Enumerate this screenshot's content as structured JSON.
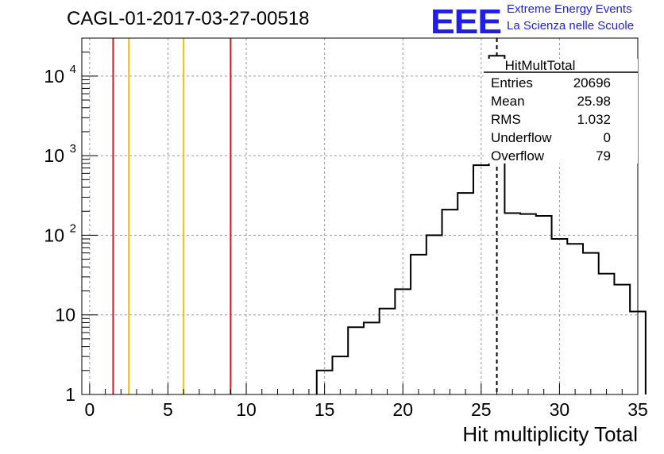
{
  "title": "CAGL-01-2017-03-27-00518",
  "logo": {
    "mark": "EEE",
    "line1": "Extreme Energy Events",
    "line2": "La Scienza nelle Scuole",
    "color": "#1f1fe6"
  },
  "chart_data": {
    "type": "histogram",
    "xlabel": "Hit multiplicity Total",
    "ylabel": "",
    "xlim": [
      -0.5,
      35
    ],
    "ylim": [
      1,
      30000
    ],
    "yscale": "log",
    "grid": true,
    "x_ticks": [
      0,
      5,
      10,
      15,
      20,
      25,
      30,
      35
    ],
    "y_ticks": [
      {
        "value": 1,
        "label": "1"
      },
      {
        "value": 10,
        "label": "10"
      },
      {
        "value": 100,
        "label": "10^2"
      },
      {
        "value": 1000,
        "label": "10^3"
      },
      {
        "value": 10000,
        "label": "10^4"
      }
    ],
    "bin_width": 1,
    "bins": [
      {
        "x_low": 14.5,
        "count": 2
      },
      {
        "x_low": 15.5,
        "count": 3
      },
      {
        "x_low": 16.5,
        "count": 7
      },
      {
        "x_low": 17.5,
        "count": 8
      },
      {
        "x_low": 18.5,
        "count": 12
      },
      {
        "x_low": 19.5,
        "count": 21
      },
      {
        "x_low": 20.5,
        "count": 57
      },
      {
        "x_low": 21.5,
        "count": 100
      },
      {
        "x_low": 22.5,
        "count": 210
      },
      {
        "x_low": 23.5,
        "count": 340
      },
      {
        "x_low": 24.5,
        "count": 760
      },
      {
        "x_low": 25.5,
        "count": 18000
      },
      {
        "x_low": 26.5,
        "count": 190
      },
      {
        "x_low": 27.5,
        "count": 185
      },
      {
        "x_low": 28.5,
        "count": 175
      },
      {
        "x_low": 29.5,
        "count": 90
      },
      {
        "x_low": 30.5,
        "count": 78
      },
      {
        "x_low": 31.5,
        "count": 60
      },
      {
        "x_low": 32.5,
        "count": 33
      },
      {
        "x_low": 33.5,
        "count": 24
      },
      {
        "x_low": 34.5,
        "count": 11
      }
    ],
    "vertical_lines": [
      {
        "x": 1.5,
        "color": "#e8141c",
        "style": "solid"
      },
      {
        "x": 2.5,
        "color": "#f5c000",
        "style": "solid"
      },
      {
        "x": 6,
        "color": "#f5c000",
        "style": "solid"
      },
      {
        "x": 9,
        "color": "#e8141c",
        "style": "solid"
      },
      {
        "x": 26,
        "color": "#000000",
        "style": "dashed"
      }
    ],
    "stats_box": {
      "title": "HitMultTotal",
      "rows": [
        {
          "label": "Entries",
          "value": "20696"
        },
        {
          "label": "Mean",
          "value": "25.98"
        },
        {
          "label": "RMS",
          "value": "1.032"
        },
        {
          "label": "Underflow",
          "value": "0"
        },
        {
          "label": "Overflow",
          "value": "79"
        }
      ]
    }
  }
}
